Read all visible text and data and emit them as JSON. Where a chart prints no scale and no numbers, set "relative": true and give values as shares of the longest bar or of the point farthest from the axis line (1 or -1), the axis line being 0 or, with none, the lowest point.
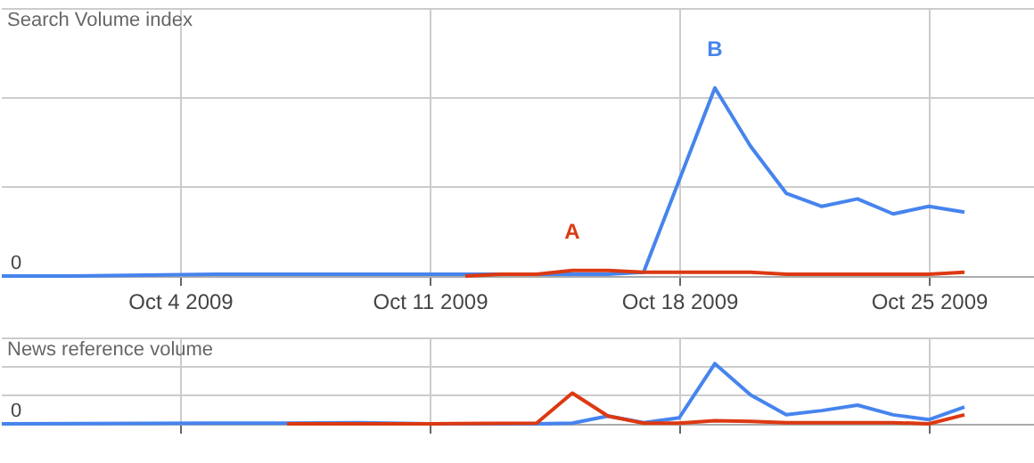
{
  "chart_data": [
    {
      "type": "line",
      "title": "Search Volume index",
      "relative": true,
      "grid": true,
      "xlim": [
        "2009-09-29",
        "2009-10-28"
      ],
      "xticks": [
        {
          "value": "2009-10-04",
          "label": "Oct 4 2009"
        },
        {
          "value": "2009-10-11",
          "label": "Oct 11 2009"
        },
        {
          "value": "2009-10-18",
          "label": "Oct 18 2009"
        },
        {
          "value": "2009-10-25",
          "label": "Oct 25 2009"
        }
      ],
      "annotations": [
        {
          "text": "A",
          "x": "2009-10-15",
          "y": 0.03
        },
        {
          "text": "B",
          "x": "2009-10-19",
          "y": 1
        },
        {
          "text": "0",
          "y": 0
        }
      ],
      "series": [
        {
          "color": "#4684ee",
          "x": [
            "2009-09-29",
            "2009-10-01",
            "2009-10-05",
            "2009-10-10",
            "2009-10-16",
            "2009-10-17",
            "2009-10-18",
            "2009-10-19",
            "2009-10-20",
            "2009-10-21",
            "2009-10-22",
            "2009-10-23",
            "2009-10-24",
            "2009-10-25",
            "2009-10-26"
          ],
          "values": [
            0,
            0,
            0.01,
            0.01,
            0.01,
            0.02,
            0.51,
            1,
            0.69,
            0.44,
            0.37,
            0.41,
            0.33,
            0.37,
            0.34
          ]
        },
        {
          "color": "#dc3912",
          "x": [
            "2009-10-12",
            "2009-10-13",
            "2009-10-14",
            "2009-10-15",
            "2009-10-16",
            "2009-10-17",
            "2009-10-18",
            "2009-10-19",
            "2009-10-20",
            "2009-10-21",
            "2009-10-22",
            "2009-10-23",
            "2009-10-24",
            "2009-10-25",
            "2009-10-26"
          ],
          "values": [
            0,
            0.01,
            0.01,
            0.03,
            0.03,
            0.02,
            0.02,
            0.02,
            0.02,
            0.01,
            0.01,
            0.01,
            0.01,
            0.01,
            0.02
          ]
        }
      ]
    },
    {
      "type": "line",
      "title": "News reference volume",
      "relative": true,
      "grid": true,
      "tick_labels": false,
      "annotations": [
        {
          "text": "0",
          "y": 0
        }
      ],
      "xlim": [
        "2009-09-29",
        "2009-10-28"
      ],
      "xticks": [
        {
          "value": "2009-10-04",
          "label": null
        },
        {
          "value": "2009-10-11",
          "label": null
        },
        {
          "value": "2009-10-18",
          "label": null
        },
        {
          "value": "2009-10-25",
          "label": null
        }
      ],
      "series": [
        {
          "color": "#4684ee",
          "x": [
            "2009-09-29",
            "2009-10-05",
            "2009-10-07",
            "2009-10-09",
            "2009-10-11",
            "2009-10-14",
            "2009-10-15",
            "2009-10-16",
            "2009-10-17",
            "2009-10-18",
            "2009-10-19",
            "2009-10-20",
            "2009-10-21",
            "2009-10-22",
            "2009-10-23",
            "2009-10-24",
            "2009-10-25",
            "2009-10-26"
          ],
          "values": [
            0,
            0.01,
            0.01,
            0.02,
            0,
            0,
            0.01,
            0.13,
            0.02,
            0.1,
            1,
            0.48,
            0.15,
            0.22,
            0.31,
            0.15,
            0.07,
            0.28
          ]
        },
        {
          "color": "#dc3912",
          "x": [
            "2009-10-07",
            "2009-10-11",
            "2009-10-14",
            "2009-10-15",
            "2009-10-16",
            "2009-10-17",
            "2009-10-18",
            "2009-10-19",
            "2009-10-20",
            "2009-10-21",
            "2009-10-22",
            "2009-10-23",
            "2009-10-24",
            "2009-10-25",
            "2009-10-26"
          ],
          "values": [
            0,
            0,
            0.01,
            0.51,
            0.13,
            0.01,
            0.01,
            0.05,
            0.04,
            0.02,
            0.02,
            0.02,
            0.02,
            0,
            0.15
          ]
        }
      ]
    }
  ]
}
